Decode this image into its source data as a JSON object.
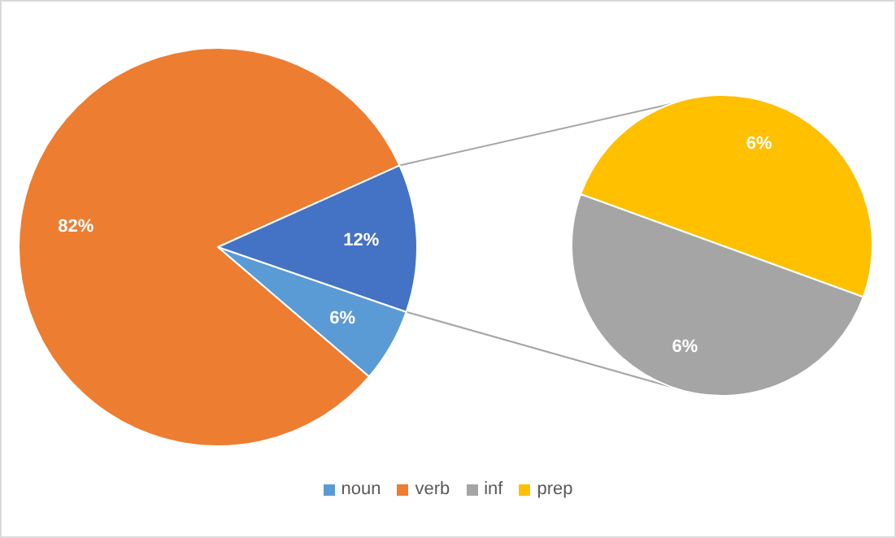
{
  "chart_data": [
    {
      "type": "pie",
      "categories": [
        "noun",
        "verb",
        null
      ],
      "values": [
        6,
        82,
        12
      ],
      "colors": [
        "#5b9bd5",
        "#ed7d31",
        "#4472c4"
      ],
      "value_labels": [
        "6%",
        "82%",
        "12%"
      ],
      "legend": "bottom"
    },
    {
      "type": "pie",
      "categories": [
        "inf",
        "prep"
      ],
      "values": [
        6,
        6
      ],
      "colors": [
        "#a5a5a5",
        "#ffc000"
      ],
      "value_labels": [
        "6%",
        "6%"
      ],
      "legend": "bottom"
    }
  ]
}
